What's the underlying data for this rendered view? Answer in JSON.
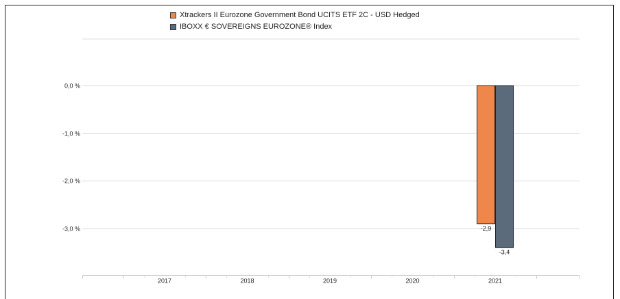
{
  "chart_data": {
    "type": "bar",
    "categories": [
      "2017",
      "2018",
      "2019",
      "2020",
      "2021"
    ],
    "series": [
      {
        "name": "Xtrackers II Eurozone Government Bond UCITS ETF  2C - USD Hedged",
        "color": "#f0874a",
        "values": [
          null,
          null,
          null,
          null,
          -2.9
        ]
      },
      {
        "name": "IBOXX € SOVEREIGNS EUROZONE® Index",
        "color": "#5b6b7b",
        "values": [
          null,
          null,
          null,
          null,
          -3.4
        ]
      }
    ],
    "data_labels": [
      "-2,9",
      "-3,4"
    ],
    "y_ticks": [
      {
        "value": 0,
        "label": "0,0 %"
      },
      {
        "value": -1,
        "label": "-1,0 %"
      },
      {
        "value": -2,
        "label": "-2,0 %"
      },
      {
        "value": -3,
        "label": "-3,0 %"
      }
    ],
    "ylim": [
      -3.98,
      0.98
    ],
    "grid": true,
    "legend_position": "top"
  }
}
